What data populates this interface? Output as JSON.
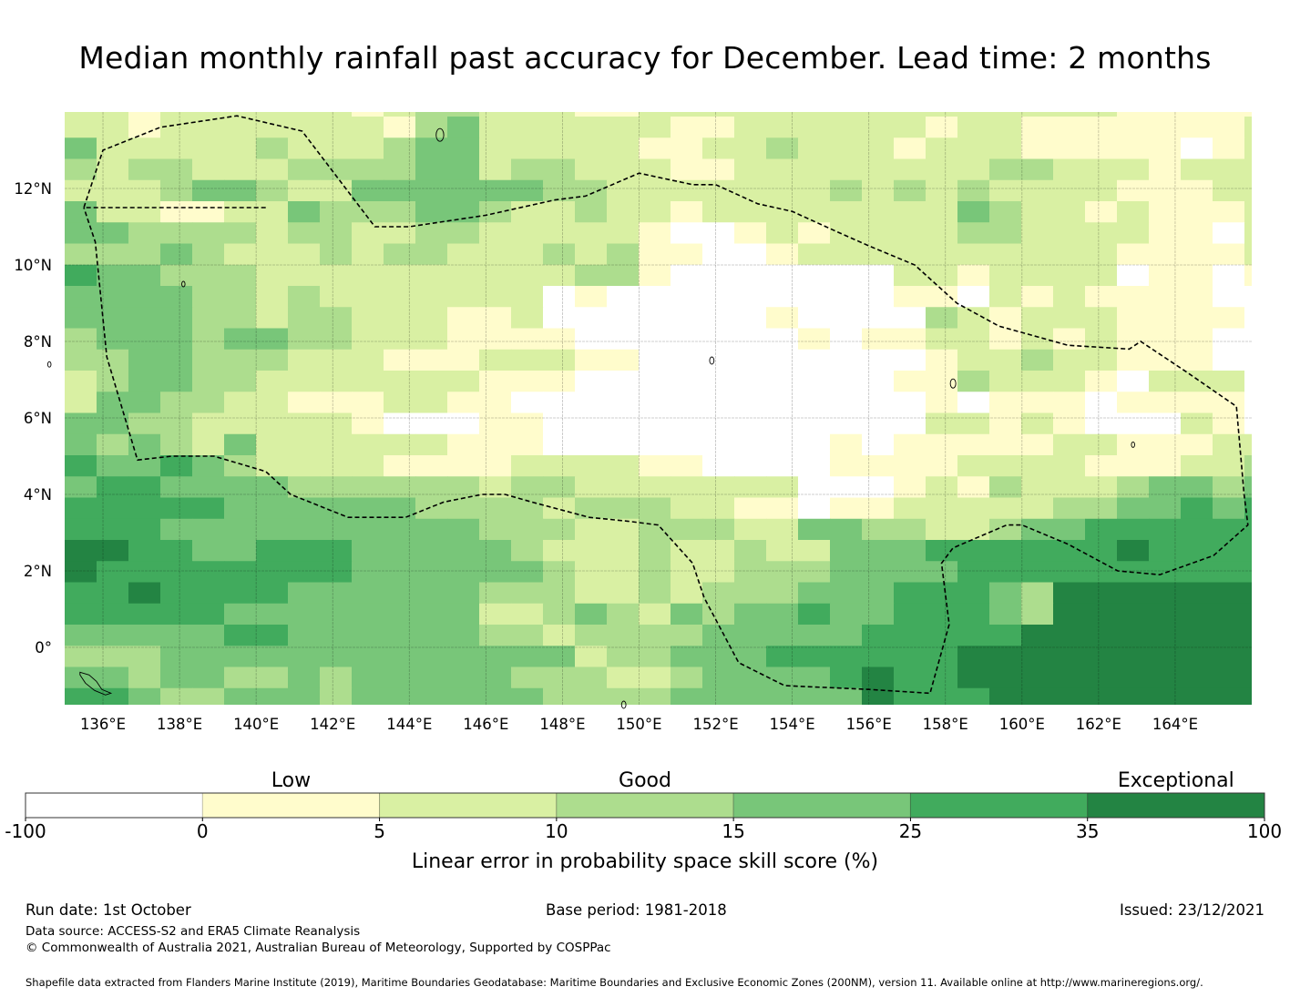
{
  "chart_data": {
    "type": "heatmap",
    "title": "Median monthly rainfall past accuracy for December. Lead time: 2 months",
    "xlabel": "",
    "ylabel": "",
    "x_range_deg": [
      135.0,
      166.0
    ],
    "y_range_deg": [
      -1.5,
      14.0
    ],
    "cell_size_deg": {
      "lon": 0.8333,
      "lat": 0.5556
    },
    "x_ticks": [
      {
        "value": 136,
        "label": "136°E"
      },
      {
        "value": 138,
        "label": "138°E"
      },
      {
        "value": 140,
        "label": "140°E"
      },
      {
        "value": 142,
        "label": "142°E"
      },
      {
        "value": 144,
        "label": "144°E"
      },
      {
        "value": 146,
        "label": "146°E"
      },
      {
        "value": 148,
        "label": "148°E"
      },
      {
        "value": 150,
        "label": "150°E"
      },
      {
        "value": 152,
        "label": "152°E"
      },
      {
        "value": 154,
        "label": "154°E"
      },
      {
        "value": 156,
        "label": "156°E"
      },
      {
        "value": 158,
        "label": "158°E"
      },
      {
        "value": 160,
        "label": "160°E"
      },
      {
        "value": 162,
        "label": "162°E"
      },
      {
        "value": 164,
        "label": "164°E"
      }
    ],
    "y_ticks": [
      {
        "value": 12,
        "label": "12°N"
      },
      {
        "value": 10,
        "label": "10°N"
      },
      {
        "value": 8,
        "label": "8°N"
      },
      {
        "value": 6,
        "label": "6°N"
      },
      {
        "value": 4,
        "label": "4°N"
      },
      {
        "value": 2,
        "label": "2°N"
      },
      {
        "value": 0,
        "label": "0°"
      }
    ],
    "grid": true,
    "colorbar": {
      "label": "Linear error in probability space skill score (%)",
      "boundaries": [
        -100,
        0,
        5,
        10,
        15,
        25,
        35,
        100
      ],
      "boundary_labels": [
        "-100",
        "0",
        "5",
        "10",
        "15",
        "25",
        "35",
        "100"
      ],
      "colors": [
        "#ffffff",
        "#fffccc",
        "#d9f0a3",
        "#addd8e",
        "#78c679",
        "#41ab5d",
        "#238443"
      ],
      "category_labels": [
        {
          "text": "Low",
          "at_bin": 1
        },
        {
          "text": "Good",
          "at_bin": 3
        },
        {
          "text": "Exceptional",
          "at_bin": 6
        }
      ],
      "placement": "bottom"
    },
    "grid_note": "rows listed north to south; each digit is the colorbar bin index (0=<0, 1=0-5, 2=5-10, 3=10-15, 4=15-25, 5=25-35, 6=35-100)",
    "category_grid": [
      "22122222212332221122222222222222211111",
      "22122222221342222221122222212211111112",
      "42222232223442222211223222122211111012",
      "32332223333442332221122222222332221222",
      "22234432244444433222222232323222211122",
      "42211224333443223221222222224322121112",
      "44333323322332222210012122223322221102",
      "33343222323322232311001222222222211112",
      "54433322222222223310000000221222201101",
      "44443323222222201000000000110212111100",
      "44443323322211200000001000032122211110",
      "34443443322211110000000101122121211100",
      "33443332221112221100000000012232211100",
      "23443322222221110000000000113222102220",
      "24433221112211000000000000010111011110",
      "44332222210001100000000000022121000210",
      "43432422222211100000000010111112211122",
      "54454322221111222211000011112222111223",
      "45544443333332332222222000121322234434",
      "55555444444333323332211011222223344545",
      "55544444444443332233322443322344555555",
      "66554455544444322232232244455555565555",
      "65555555544444432232233344445555555555",
      "55655554444443332232333444555436666666",
      "55555444444442234324344544555436666666",
      "44444554444443323333444445555566666666",
      "33344444444444442334445555556666666666",
      "44344334344444333223444456556666666666",
      "55433444344444433334444446555666666666"
    ],
    "eez_boundary_note": "dashed maritime boundary lines and island outlines overlaid"
  },
  "footer": {
    "run_date": "Run date: 1st October",
    "base_period": "Base period: 1981-2018",
    "issued": "Issued: 23/12/2021",
    "data_source": "Data source: ACCESS-S2 and ERA5 Climate Reanalysis",
    "copyright": "© Commonwealth of Australia 2021, Australian Bureau of Meteorology, Supported by COSPPac",
    "shapefile": "Shapefile data extracted from Flanders Marine Institute (2019), Maritime Boundaries Geodatabase: Maritime Boundaries and Exclusive Economic Zones (200NM), version 11. Available online at http://www.marineregions.org/."
  }
}
